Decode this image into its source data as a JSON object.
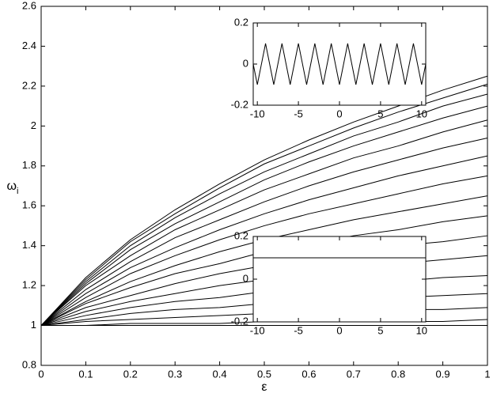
{
  "chart_data": [
    {
      "type": "line",
      "xlabel": "ε",
      "ylabel": "ω",
      "ylabel_subscript": "i",
      "color": "#000000",
      "x": [
        0,
        0.1,
        0.2,
        0.3,
        0.4,
        0.5,
        0.6,
        0.7,
        0.8,
        0.9,
        1
      ],
      "xlim": [
        0,
        1
      ],
      "xticks": [
        0,
        0.1,
        0.2,
        0.3,
        0.4,
        0.5,
        0.6,
        0.7,
        0.8,
        0.9,
        1
      ],
      "ylim": [
        0.8,
        2.6
      ],
      "yticks": [
        0.8,
        1,
        1.2,
        1.4,
        1.6,
        1.8,
        2,
        2.2,
        2.4,
        2.6
      ],
      "series": [
        {
          "values": [
            1,
            1.24,
            1.43,
            1.58,
            1.71,
            1.83,
            1.93,
            2.02,
            2.1,
            2.18,
            2.25
          ]
        },
        {
          "values": [
            1,
            1.23,
            1.42,
            1.56,
            1.69,
            1.81,
            1.9,
            1.99,
            2.07,
            2.14,
            2.21
          ]
        },
        {
          "values": [
            1,
            1.22,
            1.4,
            1.54,
            1.66,
            1.77,
            1.86,
            1.95,
            2.02,
            2.1,
            2.16
          ]
        },
        {
          "values": [
            1,
            1.21,
            1.38,
            1.51,
            1.62,
            1.73,
            1.82,
            1.9,
            1.97,
            2.04,
            2.1
          ]
        },
        {
          "values": [
            1,
            1.2,
            1.35,
            1.48,
            1.58,
            1.68,
            1.76,
            1.84,
            1.9,
            1.97,
            2.03
          ]
        },
        {
          "values": [
            1,
            1.18,
            1.32,
            1.44,
            1.53,
            1.62,
            1.7,
            1.77,
            1.83,
            1.89,
            1.94
          ]
        },
        {
          "values": [
            1,
            1.16,
            1.29,
            1.39,
            1.48,
            1.56,
            1.63,
            1.69,
            1.75,
            1.8,
            1.85
          ]
        },
        {
          "values": [
            1,
            1.14,
            1.26,
            1.35,
            1.43,
            1.5,
            1.56,
            1.61,
            1.66,
            1.71,
            1.75
          ]
        },
        {
          "values": [
            1,
            1.12,
            1.22,
            1.3,
            1.37,
            1.43,
            1.48,
            1.53,
            1.57,
            1.61,
            1.65
          ]
        },
        {
          "values": [
            1,
            1.11,
            1.19,
            1.26,
            1.31,
            1.37,
            1.41,
            1.45,
            1.48,
            1.52,
            1.55
          ]
        },
        {
          "values": [
            1,
            1.09,
            1.15,
            1.21,
            1.26,
            1.3,
            1.33,
            1.37,
            1.4,
            1.42,
            1.45
          ]
        },
        {
          "values": [
            1,
            1.07,
            1.12,
            1.16,
            1.2,
            1.23,
            1.26,
            1.29,
            1.31,
            1.33,
            1.35
          ]
        },
        {
          "values": [
            1,
            1.05,
            1.09,
            1.12,
            1.14,
            1.17,
            1.19,
            1.2,
            1.22,
            1.24,
            1.25
          ]
        },
        {
          "values": [
            1,
            1.03,
            1.06,
            1.08,
            1.09,
            1.11,
            1.12,
            1.13,
            1.14,
            1.15,
            1.16
          ]
        },
        {
          "values": [
            1,
            1.02,
            1.03,
            1.04,
            1.05,
            1.06,
            1.07,
            1.07,
            1.08,
            1.08,
            1.09
          ]
        },
        {
          "values": [
            1,
            1.0,
            1.01,
            1.01,
            1.01,
            1.02,
            1.02,
            1.02,
            1.02,
            1.02,
            1.03
          ]
        },
        {
          "values": [
            1,
            1,
            1,
            1,
            1,
            1,
            1,
            1,
            1,
            1,
            1
          ]
        }
      ]
    },
    {
      "type": "line",
      "color": "#000000",
      "x": [
        -10.5,
        -10,
        -9,
        -8,
        -7,
        -6,
        -5,
        -4,
        -3,
        -2,
        -1,
        0,
        1,
        2,
        3,
        4,
        5,
        6,
        7,
        8,
        9,
        10,
        10.5
      ],
      "xlim": [
        -10.5,
        10.5
      ],
      "xticks": [
        -10,
        -5,
        0,
        5,
        10
      ],
      "ylim": [
        -0.2,
        0.2
      ],
      "yticks": [
        -0.2,
        0,
        0.2
      ],
      "series": [
        {
          "values": [
            0,
            -0.1,
            0.1,
            -0.1,
            0.1,
            -0.1,
            0.1,
            -0.1,
            0.1,
            -0.1,
            0.1,
            -0.1,
            0.1,
            -0.1,
            0.1,
            -0.1,
            0.1,
            -0.1,
            0.1,
            -0.1,
            0.1,
            -0.1,
            0
          ]
        }
      ]
    },
    {
      "type": "line",
      "color": "#000000",
      "x": [
        -10.5,
        10.5
      ],
      "xlim": [
        -10.5,
        10.5
      ],
      "xticks": [
        -10,
        -5,
        0,
        5,
        10
      ],
      "ylim": [
        -0.2,
        0.2
      ],
      "yticks": [
        -0.2,
        0,
        0.2
      ],
      "series": [
        {
          "values": [
            0.1,
            0.1
          ]
        }
      ]
    }
  ]
}
